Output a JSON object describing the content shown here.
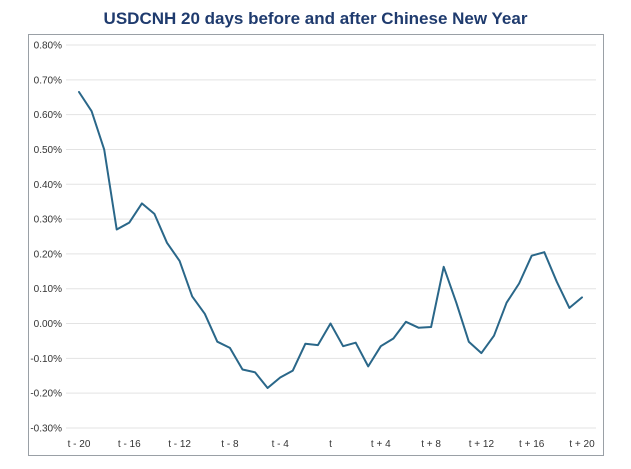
{
  "colors": {
    "title": "#1f3b6e",
    "line": "#2a6789",
    "grid": "#e3e3e3"
  },
  "chart_data": {
    "type": "line",
    "title": "USDCNH 20 days before and after Chinese New Year",
    "xlabel": "",
    "ylabel": "",
    "ylim": [
      -0.3,
      0.8
    ],
    "yticks": [
      -0.3,
      -0.2,
      -0.1,
      0.0,
      0.1,
      0.2,
      0.3,
      0.4,
      0.5,
      0.6,
      0.7,
      0.8
    ],
    "ytick_labels": [
      "-0.30%",
      "-0.20%",
      "-0.10%",
      "0.00%",
      "0.10%",
      "0.20%",
      "0.30%",
      "0.40%",
      "0.50%",
      "0.60%",
      "0.70%",
      "0.80%"
    ],
    "x": [
      -20,
      -19,
      -18,
      -17,
      -16,
      -15,
      -14,
      -13,
      -12,
      -11,
      -10,
      -9,
      -8,
      -7,
      -6,
      -5,
      -4,
      -3,
      -2,
      -1,
      0,
      1,
      2,
      3,
      4,
      5,
      6,
      7,
      8,
      9,
      10,
      11,
      12,
      13,
      14,
      15,
      16,
      17,
      18,
      19,
      20
    ],
    "xtick_values": [
      -20,
      -16,
      -12,
      -8,
      -4,
      0,
      4,
      8,
      12,
      16,
      20
    ],
    "xtick_labels": [
      "t - 20",
      "t - 16",
      "t - 12",
      "t - 8",
      "t - 4",
      "t",
      "t + 4",
      "t + 8",
      "t + 12",
      "t + 16",
      "t + 20"
    ],
    "grid": true,
    "legend": "none",
    "series": [
      {
        "values": [
          0.665,
          0.61,
          0.5,
          0.27,
          0.29,
          0.345,
          0.315,
          0.232,
          0.18,
          0.078,
          0.028,
          -0.052,
          -0.07,
          -0.132,
          -0.14,
          -0.185,
          -0.155,
          -0.135,
          -0.058,
          -0.062,
          0.0,
          -0.065,
          -0.055,
          -0.123,
          -0.065,
          -0.043,
          0.005,
          -0.012,
          -0.01,
          0.163,
          0.06,
          -0.052,
          -0.085,
          -0.035,
          0.06,
          0.115,
          0.195,
          0.205,
          0.12,
          0.045,
          0.075
        ]
      }
    ]
  }
}
